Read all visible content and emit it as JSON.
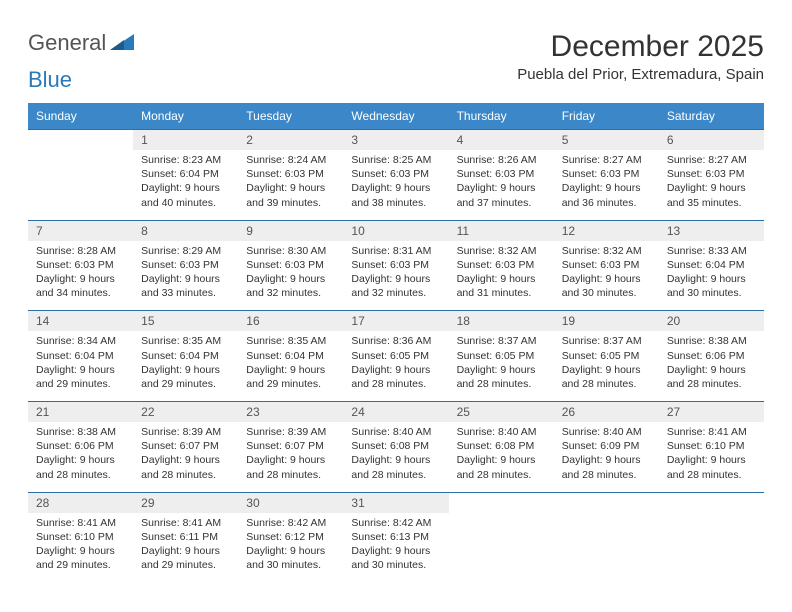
{
  "brand": {
    "part1": "General",
    "part2": "Blue"
  },
  "title": "December 2025",
  "location": "Puebla del Prior, Extremadura, Spain",
  "colors": {
    "header_bg": "#3b87c8",
    "header_text": "#ffffff",
    "daynum_bg": "#eeeeee",
    "border": "#2a6fa8",
    "brand_gray": "#555555",
    "brand_blue": "#2a7ab9"
  },
  "day_names": [
    "Sunday",
    "Monday",
    "Tuesday",
    "Wednesday",
    "Thursday",
    "Friday",
    "Saturday"
  ],
  "weeks": [
    [
      {
        "n": "",
        "sr": "",
        "ss": "",
        "d1": "",
        "d2": ""
      },
      {
        "n": "1",
        "sr": "Sunrise: 8:23 AM",
        "ss": "Sunset: 6:04 PM",
        "d1": "Daylight: 9 hours",
        "d2": "and 40 minutes."
      },
      {
        "n": "2",
        "sr": "Sunrise: 8:24 AM",
        "ss": "Sunset: 6:03 PM",
        "d1": "Daylight: 9 hours",
        "d2": "and 39 minutes."
      },
      {
        "n": "3",
        "sr": "Sunrise: 8:25 AM",
        "ss": "Sunset: 6:03 PM",
        "d1": "Daylight: 9 hours",
        "d2": "and 38 minutes."
      },
      {
        "n": "4",
        "sr": "Sunrise: 8:26 AM",
        "ss": "Sunset: 6:03 PM",
        "d1": "Daylight: 9 hours",
        "d2": "and 37 minutes."
      },
      {
        "n": "5",
        "sr": "Sunrise: 8:27 AM",
        "ss": "Sunset: 6:03 PM",
        "d1": "Daylight: 9 hours",
        "d2": "and 36 minutes."
      },
      {
        "n": "6",
        "sr": "Sunrise: 8:27 AM",
        "ss": "Sunset: 6:03 PM",
        "d1": "Daylight: 9 hours",
        "d2": "and 35 minutes."
      }
    ],
    [
      {
        "n": "7",
        "sr": "Sunrise: 8:28 AM",
        "ss": "Sunset: 6:03 PM",
        "d1": "Daylight: 9 hours",
        "d2": "and 34 minutes."
      },
      {
        "n": "8",
        "sr": "Sunrise: 8:29 AM",
        "ss": "Sunset: 6:03 PM",
        "d1": "Daylight: 9 hours",
        "d2": "and 33 minutes."
      },
      {
        "n": "9",
        "sr": "Sunrise: 8:30 AM",
        "ss": "Sunset: 6:03 PM",
        "d1": "Daylight: 9 hours",
        "d2": "and 32 minutes."
      },
      {
        "n": "10",
        "sr": "Sunrise: 8:31 AM",
        "ss": "Sunset: 6:03 PM",
        "d1": "Daylight: 9 hours",
        "d2": "and 32 minutes."
      },
      {
        "n": "11",
        "sr": "Sunrise: 8:32 AM",
        "ss": "Sunset: 6:03 PM",
        "d1": "Daylight: 9 hours",
        "d2": "and 31 minutes."
      },
      {
        "n": "12",
        "sr": "Sunrise: 8:32 AM",
        "ss": "Sunset: 6:03 PM",
        "d1": "Daylight: 9 hours",
        "d2": "and 30 minutes."
      },
      {
        "n": "13",
        "sr": "Sunrise: 8:33 AM",
        "ss": "Sunset: 6:04 PM",
        "d1": "Daylight: 9 hours",
        "d2": "and 30 minutes."
      }
    ],
    [
      {
        "n": "14",
        "sr": "Sunrise: 8:34 AM",
        "ss": "Sunset: 6:04 PM",
        "d1": "Daylight: 9 hours",
        "d2": "and 29 minutes."
      },
      {
        "n": "15",
        "sr": "Sunrise: 8:35 AM",
        "ss": "Sunset: 6:04 PM",
        "d1": "Daylight: 9 hours",
        "d2": "and 29 minutes."
      },
      {
        "n": "16",
        "sr": "Sunrise: 8:35 AM",
        "ss": "Sunset: 6:04 PM",
        "d1": "Daylight: 9 hours",
        "d2": "and 29 minutes."
      },
      {
        "n": "17",
        "sr": "Sunrise: 8:36 AM",
        "ss": "Sunset: 6:05 PM",
        "d1": "Daylight: 9 hours",
        "d2": "and 28 minutes."
      },
      {
        "n": "18",
        "sr": "Sunrise: 8:37 AM",
        "ss": "Sunset: 6:05 PM",
        "d1": "Daylight: 9 hours",
        "d2": "and 28 minutes."
      },
      {
        "n": "19",
        "sr": "Sunrise: 8:37 AM",
        "ss": "Sunset: 6:05 PM",
        "d1": "Daylight: 9 hours",
        "d2": "and 28 minutes."
      },
      {
        "n": "20",
        "sr": "Sunrise: 8:38 AM",
        "ss": "Sunset: 6:06 PM",
        "d1": "Daylight: 9 hours",
        "d2": "and 28 minutes."
      }
    ],
    [
      {
        "n": "21",
        "sr": "Sunrise: 8:38 AM",
        "ss": "Sunset: 6:06 PM",
        "d1": "Daylight: 9 hours",
        "d2": "and 28 minutes."
      },
      {
        "n": "22",
        "sr": "Sunrise: 8:39 AM",
        "ss": "Sunset: 6:07 PM",
        "d1": "Daylight: 9 hours",
        "d2": "and 28 minutes."
      },
      {
        "n": "23",
        "sr": "Sunrise: 8:39 AM",
        "ss": "Sunset: 6:07 PM",
        "d1": "Daylight: 9 hours",
        "d2": "and 28 minutes."
      },
      {
        "n": "24",
        "sr": "Sunrise: 8:40 AM",
        "ss": "Sunset: 6:08 PM",
        "d1": "Daylight: 9 hours",
        "d2": "and 28 minutes."
      },
      {
        "n": "25",
        "sr": "Sunrise: 8:40 AM",
        "ss": "Sunset: 6:08 PM",
        "d1": "Daylight: 9 hours",
        "d2": "and 28 minutes."
      },
      {
        "n": "26",
        "sr": "Sunrise: 8:40 AM",
        "ss": "Sunset: 6:09 PM",
        "d1": "Daylight: 9 hours",
        "d2": "and 28 minutes."
      },
      {
        "n": "27",
        "sr": "Sunrise: 8:41 AM",
        "ss": "Sunset: 6:10 PM",
        "d1": "Daylight: 9 hours",
        "d2": "and 28 minutes."
      }
    ],
    [
      {
        "n": "28",
        "sr": "Sunrise: 8:41 AM",
        "ss": "Sunset: 6:10 PM",
        "d1": "Daylight: 9 hours",
        "d2": "and 29 minutes."
      },
      {
        "n": "29",
        "sr": "Sunrise: 8:41 AM",
        "ss": "Sunset: 6:11 PM",
        "d1": "Daylight: 9 hours",
        "d2": "and 29 minutes."
      },
      {
        "n": "30",
        "sr": "Sunrise: 8:42 AM",
        "ss": "Sunset: 6:12 PM",
        "d1": "Daylight: 9 hours",
        "d2": "and 30 minutes."
      },
      {
        "n": "31",
        "sr": "Sunrise: 8:42 AM",
        "ss": "Sunset: 6:13 PM",
        "d1": "Daylight: 9 hours",
        "d2": "and 30 minutes."
      },
      {
        "n": "",
        "sr": "",
        "ss": "",
        "d1": "",
        "d2": ""
      },
      {
        "n": "",
        "sr": "",
        "ss": "",
        "d1": "",
        "d2": ""
      },
      {
        "n": "",
        "sr": "",
        "ss": "",
        "d1": "",
        "d2": ""
      }
    ]
  ]
}
